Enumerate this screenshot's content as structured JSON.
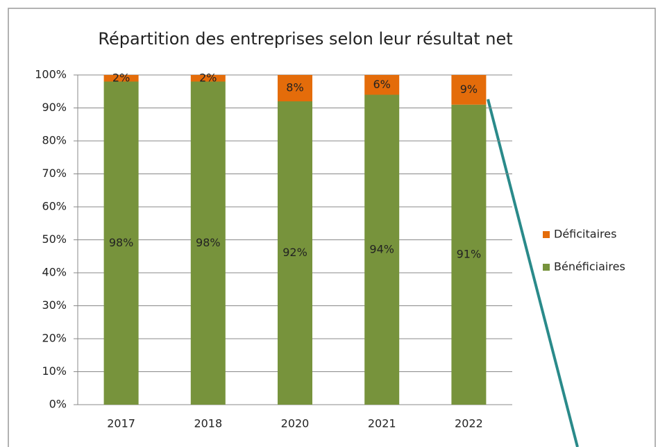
{
  "chart_data": {
    "type": "stacked_bar",
    "title": "Répartition des entreprises selon leur résultat net",
    "categories": [
      "2017",
      "2018",
      "2020",
      "2021",
      "2022"
    ],
    "series": [
      {
        "name": "Bénéficiaires",
        "color": "#77933c",
        "values": [
          98,
          98,
          92,
          94,
          91
        ],
        "value_labels": [
          "98%",
          "98%",
          "92%",
          "94%",
          "91%"
        ]
      },
      {
        "name": "Déficitaires",
        "color": "#e46c0a",
        "values": [
          2,
          2,
          8,
          6,
          9
        ],
        "value_labels": [
          "2%",
          "2%",
          "8%",
          "6%",
          "9%"
        ]
      }
    ],
    "ylim": [
      0,
      100
    ],
    "yticks": [
      {
        "value": 0,
        "label": "0%"
      },
      {
        "value": 10,
        "label": "10%"
      },
      {
        "value": 20,
        "label": "20%"
      },
      {
        "value": 30,
        "label": "30%"
      },
      {
        "value": 40,
        "label": "40%"
      },
      {
        "value": 50,
        "label": "50%"
      },
      {
        "value": 60,
        "label": "60%"
      },
      {
        "value": 70,
        "label": "70%"
      },
      {
        "value": 80,
        "label": "80%"
      },
      {
        "value": 90,
        "label": "90%"
      },
      {
        "value": 100,
        "label": "100%"
      }
    ],
    "grid": true,
    "legend": "right"
  }
}
